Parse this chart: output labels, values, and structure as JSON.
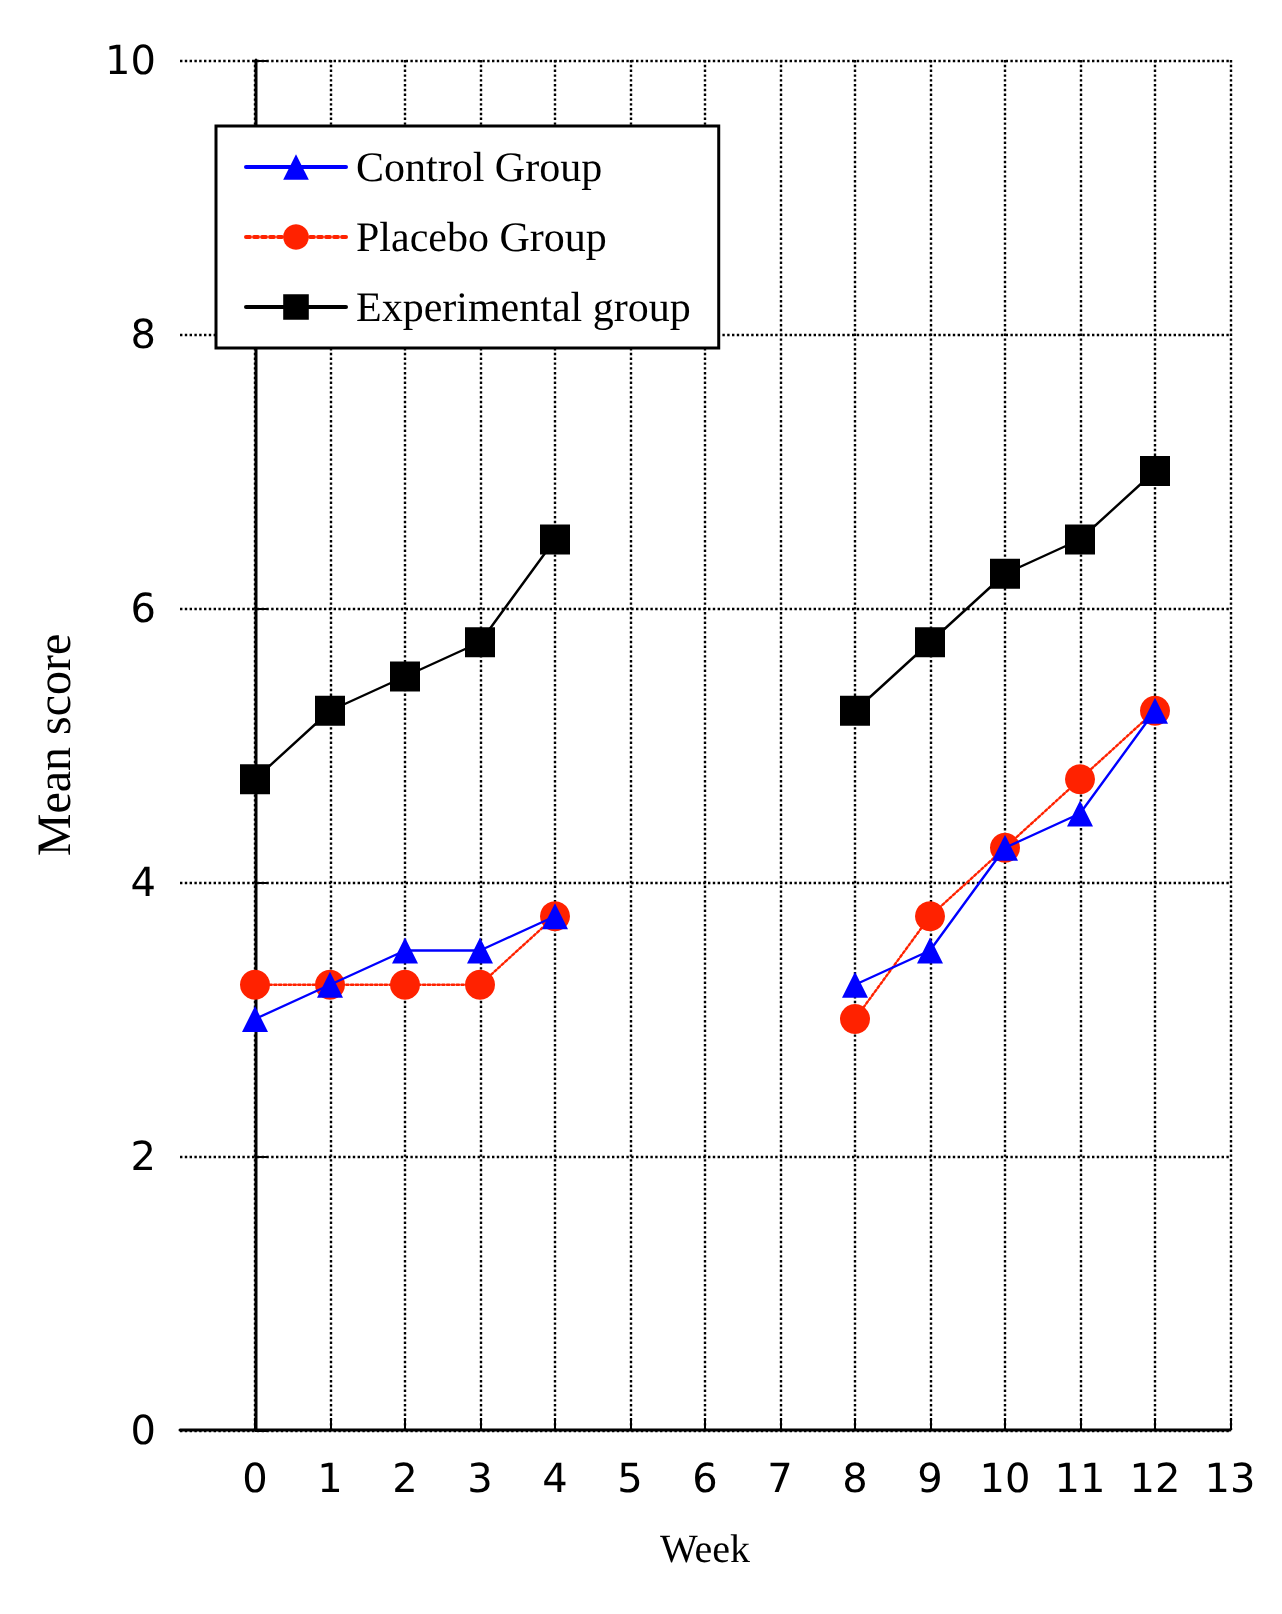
{
  "chart_data": {
    "type": "line",
    "xlabel": "Week",
    "ylabel": "Mean score",
    "x": [
      0,
      1,
      2,
      3,
      4,
      5,
      6,
      7,
      8,
      9,
      10,
      11,
      12
    ],
    "series": [
      {
        "name": "Control Group",
        "color": "#0000ff",
        "marker": "triangle",
        "line_style": "solid",
        "values": [
          3.0,
          3.25,
          3.5,
          3.5,
          3.75,
          null,
          null,
          null,
          3.25,
          3.5,
          4.25,
          4.5,
          5.25
        ]
      },
      {
        "name": "Placebo Group",
        "color": "#ff2200",
        "marker": "circle",
        "line_style": "dotted",
        "values": [
          3.25,
          3.25,
          3.25,
          3.25,
          3.75,
          null,
          null,
          null,
          3.0,
          3.75,
          4.25,
          4.75,
          5.25
        ]
      },
      {
        "name": "Experimental group",
        "color": "#000000",
        "marker": "square",
        "line_style": "solid",
        "values": [
          4.75,
          5.25,
          5.5,
          5.75,
          6.5,
          null,
          null,
          null,
          5.25,
          5.75,
          6.25,
          6.5,
          7.0
        ]
      }
    ],
    "xlim": [
      -1,
      13
    ],
    "xticks": [
      0,
      1,
      2,
      3,
      4,
      5,
      6,
      7,
      8,
      9,
      10,
      11,
      12,
      13
    ],
    "ylim": [
      0,
      10
    ],
    "yticks": [
      0,
      2,
      4,
      6,
      8,
      10
    ],
    "grid": true,
    "legend": "top left"
  }
}
